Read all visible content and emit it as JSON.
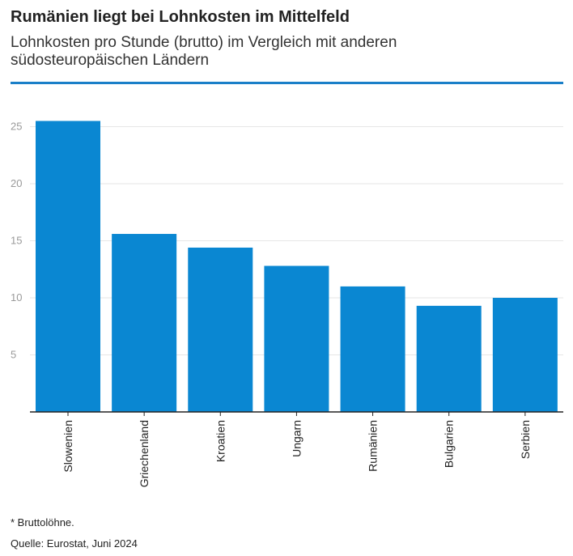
{
  "header": {
    "title": "Rumänien liegt bei Lohnkosten im Mittelfeld",
    "subtitle": "Lohnkosten pro Stunde (brutto) im Vergleich mit anderen südosteuropäischen Ländern"
  },
  "footer": {
    "footnote": "* Bruttolöhne.",
    "source": "Quelle: Eurostat, Juni 2024"
  },
  "colors": {
    "bar": "#0a87d2",
    "accent_rule": "#1a7fc8",
    "gridline": "#e6e6e6",
    "axis": "#222222"
  },
  "chart_data": {
    "type": "bar",
    "title": "Rumänien liegt bei Lohnkosten im Mittelfeld",
    "subtitle": "Lohnkosten pro Stunde (brutto) im Vergleich mit anderen südosteuropäischen Ländern",
    "xlabel": "",
    "ylabel": "",
    "categories": [
      "Slowenien",
      "Griechenland",
      "Kroatien",
      "Ungarn",
      "Rumänien",
      "Bulgarien",
      "Serbien"
    ],
    "values": [
      25.5,
      15.6,
      14.4,
      12.8,
      11.0,
      9.3,
      10.0
    ],
    "ylim": [
      0,
      25
    ],
    "yticks": [
      5,
      10,
      15,
      20,
      25
    ],
    "grid": true,
    "legend": "none"
  }
}
